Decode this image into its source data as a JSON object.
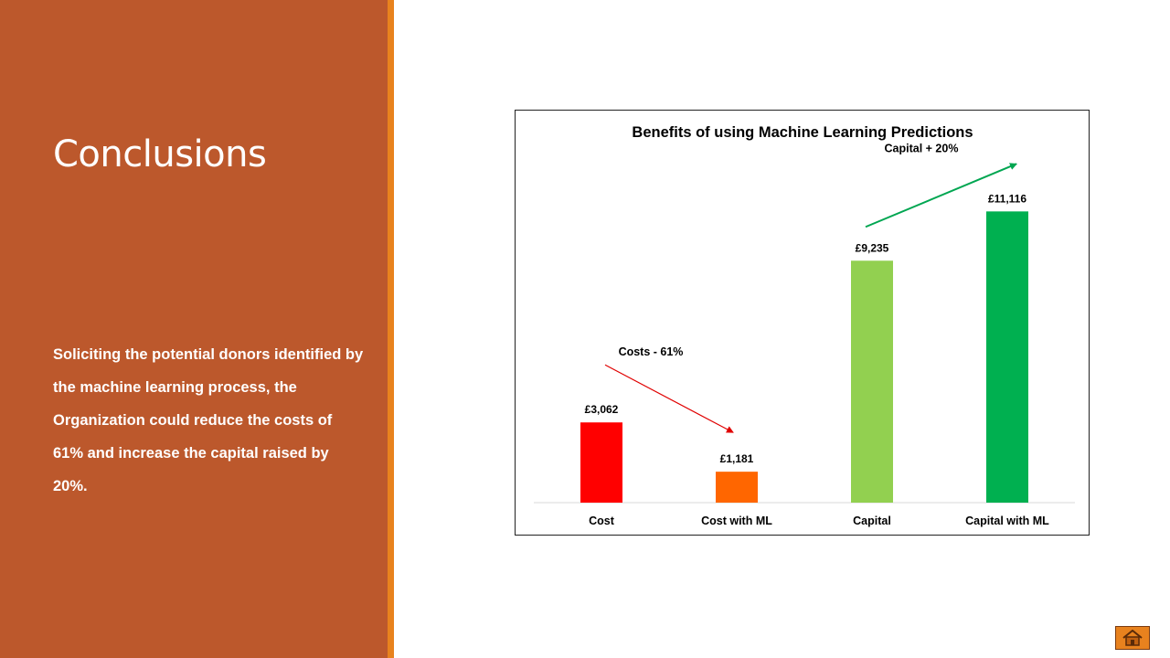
{
  "slide": {
    "title": "Conclusions",
    "body": "Soliciting the potential donors identified by the machine learning process, the Organization could reduce the costs of 61% and increase the capital raised by 20%."
  },
  "colors": {
    "panel": "#bc582c",
    "accent": "#e8821e",
    "cost": "#ff0000",
    "cost_ml": "#ff6600",
    "capital": "#92d050",
    "capital_ml": "#00b050",
    "arrow_down": "#e00000",
    "arrow_up": "#00a651"
  },
  "home_icon": "home-icon",
  "chart_data": {
    "type": "bar",
    "title": "Benefits of using Machine Learning Predictions",
    "categories": [
      "Cost",
      "Cost with ML",
      "Capital",
      "Capital with ML"
    ],
    "values": [
      3062,
      1181,
      9235,
      11116
    ],
    "value_labels": [
      "£3,062",
      "£1,181",
      "£9,235",
      "£11,116"
    ],
    "bar_colors": [
      "#ff0000",
      "#ff6600",
      "#92d050",
      "#00b050"
    ],
    "ylim": [
      0,
      12000
    ],
    "grid": false,
    "legend": "none",
    "annotations": [
      {
        "text": "Costs  - 61%",
        "from_category": "Cost",
        "to_category": "Cost with ML",
        "direction": "down",
        "color": "#e00000"
      },
      {
        "text": "Capital  + 20%",
        "from_category": "Capital",
        "to_category": "Capital with ML",
        "direction": "up",
        "color": "#00a651"
      }
    ]
  }
}
